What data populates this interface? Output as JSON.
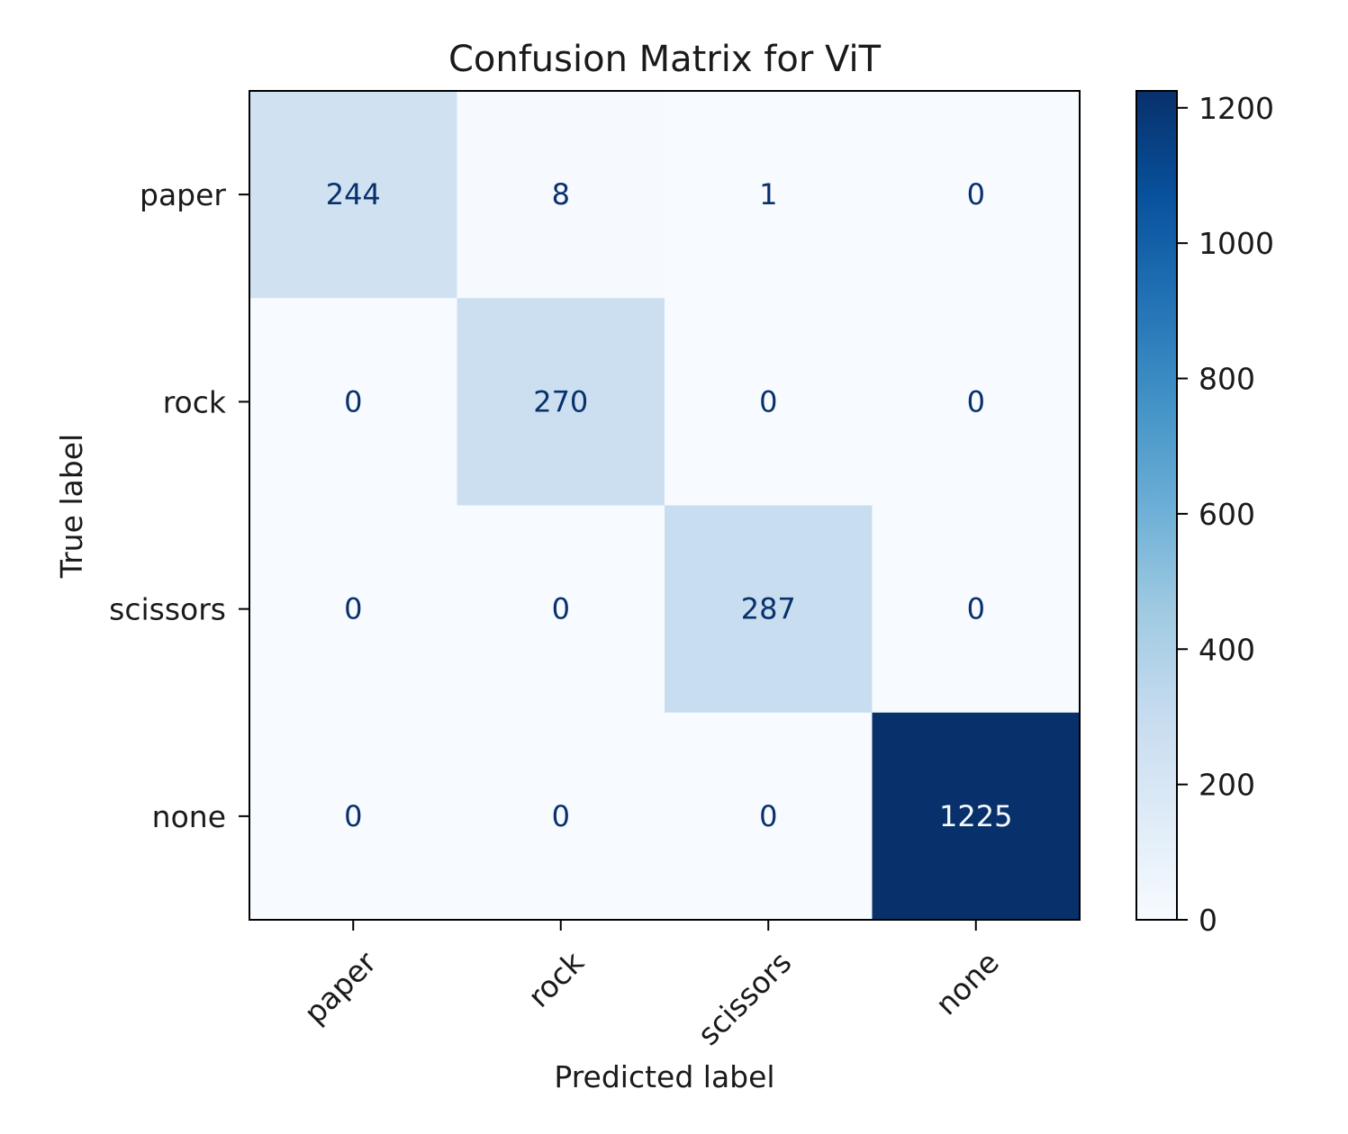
{
  "chart_data": {
    "type": "heatmap",
    "title": "Confusion Matrix for ViT",
    "xlabel": "Predicted label",
    "ylabel": "True label",
    "x_categories": [
      "paper",
      "rock",
      "scissors",
      "none"
    ],
    "y_categories": [
      "paper",
      "rock",
      "scissors",
      "none"
    ],
    "values": [
      [
        244,
        8,
        1,
        0
      ],
      [
        0,
        270,
        0,
        0
      ],
      [
        0,
        0,
        287,
        0
      ],
      [
        0,
        0,
        0,
        1225
      ]
    ],
    "colormap": "Blues",
    "colorbar": {
      "range": [
        0,
        1225
      ],
      "ticks": [
        0,
        200,
        400,
        600,
        800,
        1000,
        1200
      ]
    },
    "colors": {
      "min": "#f7fbff",
      "max": "#08306b",
      "text_dark": "#08306b",
      "text_light": "#f7fbff"
    },
    "grid": false,
    "x_tick_rotation_deg": 45
  }
}
